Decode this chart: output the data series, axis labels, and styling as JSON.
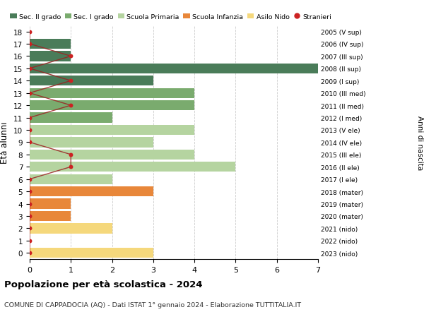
{
  "ages": [
    18,
    17,
    16,
    15,
    14,
    13,
    12,
    11,
    10,
    9,
    8,
    7,
    6,
    5,
    4,
    3,
    2,
    1,
    0
  ],
  "right_labels": [
    "2005 (V sup)",
    "2006 (IV sup)",
    "2007 (III sup)",
    "2008 (II sup)",
    "2009 (I sup)",
    "2010 (III med)",
    "2011 (II med)",
    "2012 (I med)",
    "2013 (V ele)",
    "2014 (IV ele)",
    "2015 (III ele)",
    "2016 (II ele)",
    "2017 (I ele)",
    "2018 (mater)",
    "2019 (mater)",
    "2020 (mater)",
    "2021 (nido)",
    "2022 (nido)",
    "2023 (nido)"
  ],
  "bar_values": [
    0,
    1,
    1,
    7,
    3,
    4,
    4,
    2,
    4,
    3,
    4,
    5,
    2,
    3,
    1,
    1,
    2,
    0,
    3
  ],
  "bar_colors": [
    "#4a7c59",
    "#4a7c59",
    "#4a7c59",
    "#4a7c59",
    "#4a7c59",
    "#7aab6e",
    "#7aab6e",
    "#7aab6e",
    "#b5d4a0",
    "#b5d4a0",
    "#b5d4a0",
    "#b5d4a0",
    "#b5d4a0",
    "#e8873a",
    "#e8873a",
    "#e8873a",
    "#f5d87c",
    "#f5d87c",
    "#f5d87c"
  ],
  "stranieri_values": [
    0,
    0,
    1,
    0,
    1,
    0,
    1,
    0,
    0,
    0,
    1,
    1,
    0,
    0,
    0,
    0,
    0,
    0,
    0
  ],
  "legend_labels": [
    "Sec. II grado",
    "Sec. I grado",
    "Scuola Primaria",
    "Scuola Infanzia",
    "Asilo Nido",
    "Stranieri"
  ],
  "legend_colors": [
    "#4a7c59",
    "#7aab6e",
    "#b5d4a0",
    "#e8873a",
    "#f5d87c",
    "#cc2222"
  ],
  "title": "Popolazione per età scolastica - 2024",
  "subtitle": "COMUNE DI CAPPADOCIA (AQ) - Dati ISTAT 1° gennaio 2024 - Elaborazione TUTTITALIA.IT",
  "ylabel": "Età alunni",
  "ylabel_right": "Anni di nascita",
  "xlim": [
    0,
    7
  ],
  "xticks": [
    0,
    1,
    2,
    3,
    4,
    5,
    6,
    7
  ],
  "background_color": "#ffffff",
  "grid_color": "#cccccc"
}
